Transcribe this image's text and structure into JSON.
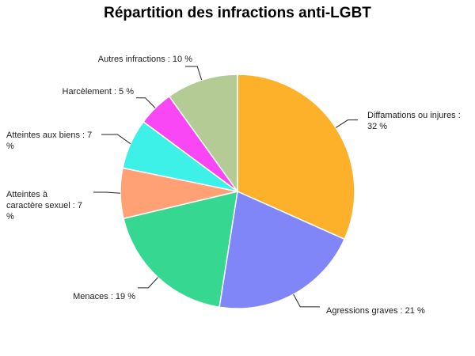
{
  "chart_data": {
    "type": "pie",
    "title": "Répartition des infractions anti-LGBT",
    "start_angle_deg": 0,
    "direction": "clockwise",
    "slices": [
      {
        "label_lines": [
          "Diffamations ou injures :",
          "32 %"
        ],
        "value": 32,
        "color": "#fdb12a"
      },
      {
        "label_lines": [
          "Agressions graves : 21 %"
        ],
        "value": 21,
        "color": "#8086f7"
      },
      {
        "label_lines": [
          "Menaces : 19 %"
        ],
        "value": 19,
        "color": "#36d891"
      },
      {
        "label_lines": [
          "Atteintes à",
          "caractère sexuel : 7",
          "%"
        ],
        "value": 7,
        "color": "#ffa075"
      },
      {
        "label_lines": [
          "Atteintes aux biens : 7",
          "%"
        ],
        "value": 7,
        "color": "#3ef1e8"
      },
      {
        "label_lines": [
          "Harcèlement : 5 %"
        ],
        "value": 5,
        "color": "#f947f5"
      },
      {
        "label_lines": [
          "Autres infractions : 10 %"
        ],
        "value": 10,
        "color": "#b5cb95"
      }
    ]
  }
}
